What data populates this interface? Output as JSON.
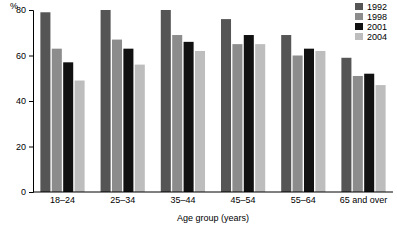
{
  "chart_data": {
    "type": "bar",
    "y_label": "%",
    "x_label": "Age group (years)",
    "categories": [
      "18–24",
      "25–34",
      "35–44",
      "45–54",
      "55–64",
      "65 and over"
    ],
    "series": [
      {
        "name": "1992",
        "color": "#555555",
        "values": [
          79,
          80,
          80,
          76,
          69,
          59
        ]
      },
      {
        "name": "1998",
        "color": "#8c8c8c",
        "values": [
          63,
          67,
          69,
          65,
          60,
          51
        ]
      },
      {
        "name": "2001",
        "color": "#111111",
        "values": [
          57,
          63,
          66,
          69,
          63,
          52
        ]
      },
      {
        "name": "2004",
        "color": "#bdbdbd",
        "values": [
          49,
          56,
          62,
          65,
          62,
          47
        ]
      }
    ],
    "ylim": [
      0,
      80
    ],
    "yticks": [
      0,
      20,
      40,
      60,
      80
    ],
    "grid": false,
    "legend": "top-right"
  }
}
